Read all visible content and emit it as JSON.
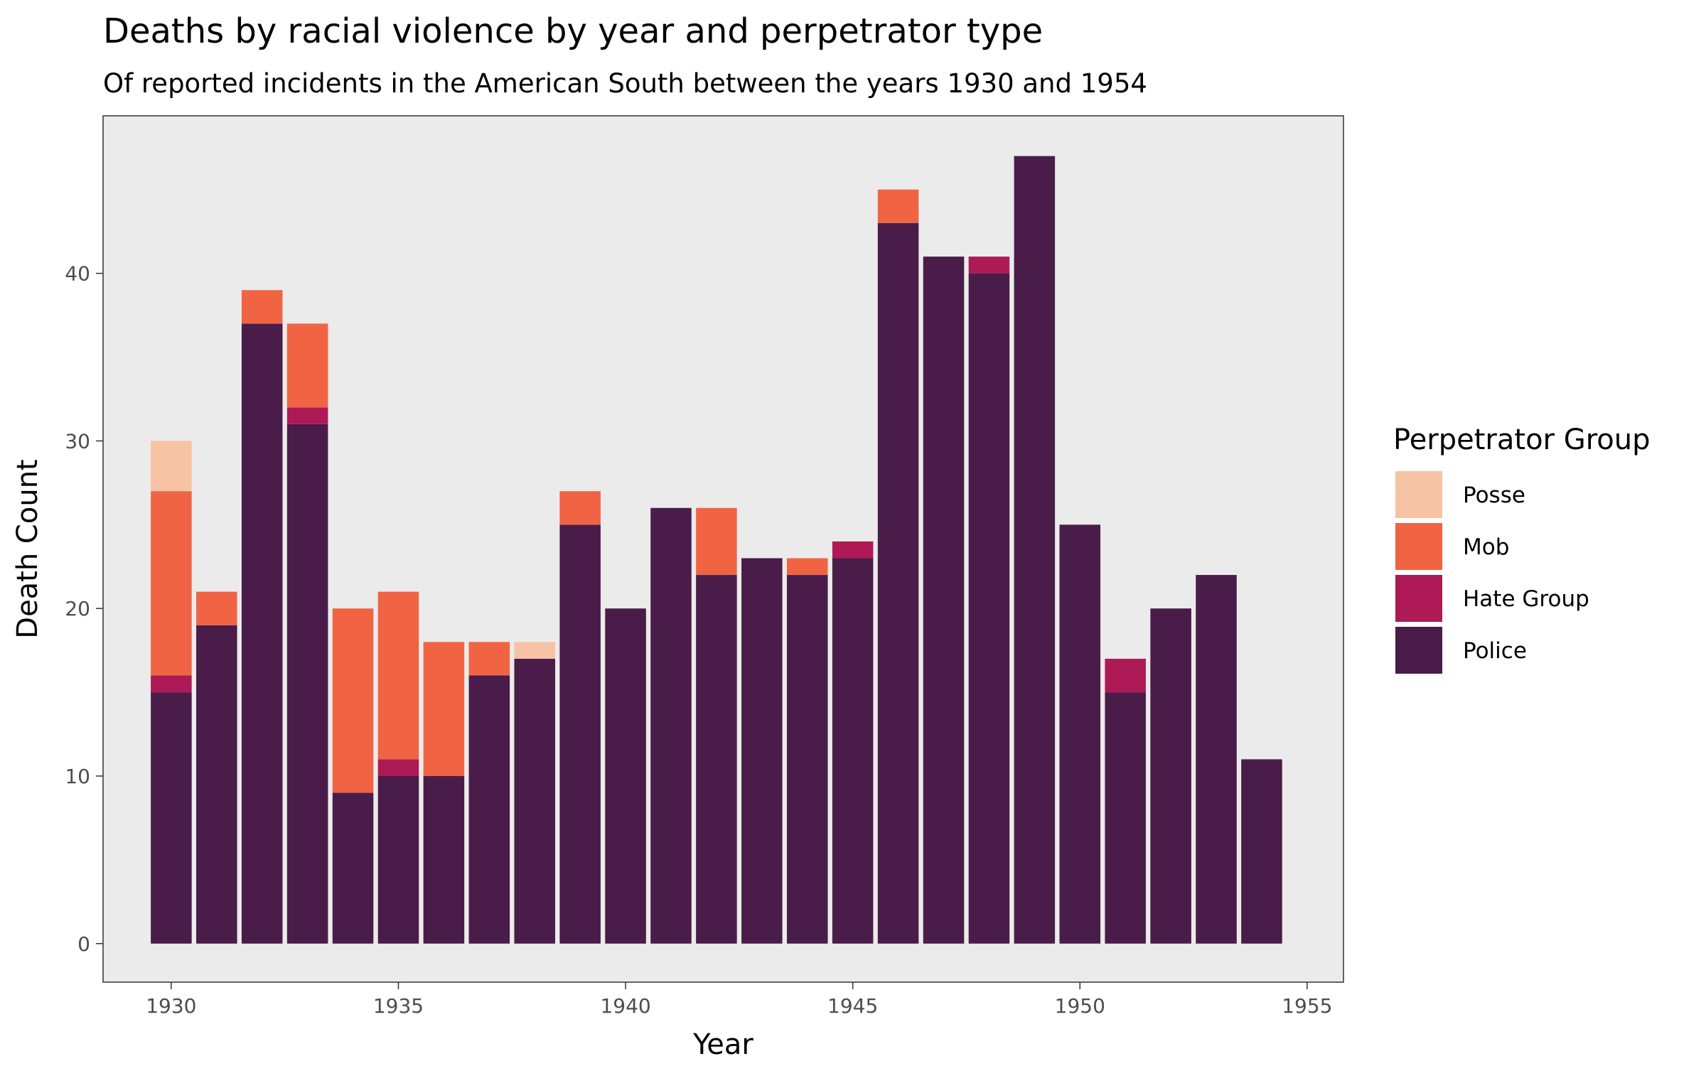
{
  "chart_data": {
    "type": "bar",
    "stacked": true,
    "title": "Deaths by racial violence by year and perpetrator type",
    "subtitle": "Of reported incidents in the American South between the years 1930 and 1954",
    "xlabel": "Year",
    "ylabel": "Death Count",
    "xlim": [
      1928.5,
      1955.8
    ],
    "ylim": [
      -2.3,
      49.4
    ],
    "x_ticks": [
      1930,
      1935,
      1940,
      1945,
      1950,
      1955
    ],
    "y_ticks": [
      0,
      10,
      20,
      30,
      40
    ],
    "legend": {
      "title": "Perpetrator Group",
      "placement": "right"
    },
    "colors": {
      "panel": "#ebebeb",
      "Police": "#4a1c49",
      "Hate Group": "#ad1a56",
      "Mob": "#f06444",
      "Posse": "#f7c3a5"
    },
    "x": [
      1930,
      1931,
      1932,
      1933,
      1934,
      1935,
      1936,
      1937,
      1938,
      1939,
      1940,
      1941,
      1942,
      1943,
      1944,
      1945,
      1946,
      1947,
      1948,
      1949,
      1950,
      1951,
      1952,
      1953,
      1954
    ],
    "series": [
      {
        "name": "Police",
        "values": [
          15,
          19,
          37,
          31,
          9,
          10,
          10,
          16,
          17,
          25,
          20,
          26,
          22,
          23,
          22,
          23,
          43,
          41,
          40,
          47,
          25,
          15,
          20,
          22,
          11
        ]
      },
      {
        "name": "Hate Group",
        "values": [
          1,
          0,
          0,
          1,
          0,
          1,
          0,
          0,
          0,
          0,
          0,
          0,
          0,
          0,
          0,
          1,
          0,
          0,
          1,
          0,
          0,
          2,
          0,
          0,
          0
        ]
      },
      {
        "name": "Mob",
        "values": [
          11,
          2,
          2,
          5,
          11,
          10,
          8,
          2,
          0,
          2,
          0,
          0,
          4,
          0,
          1,
          0,
          2,
          0,
          0,
          0,
          0,
          0,
          0,
          0,
          0
        ]
      },
      {
        "name": "Posse",
        "values": [
          3,
          0,
          0,
          0,
          0,
          0,
          0,
          0,
          1,
          0,
          0,
          0,
          0,
          0,
          0,
          0,
          0,
          0,
          0,
          0,
          0,
          0,
          0,
          0,
          0
        ]
      }
    ],
    "legend_order": [
      "Posse",
      "Mob",
      "Hate Group",
      "Police"
    ]
  }
}
